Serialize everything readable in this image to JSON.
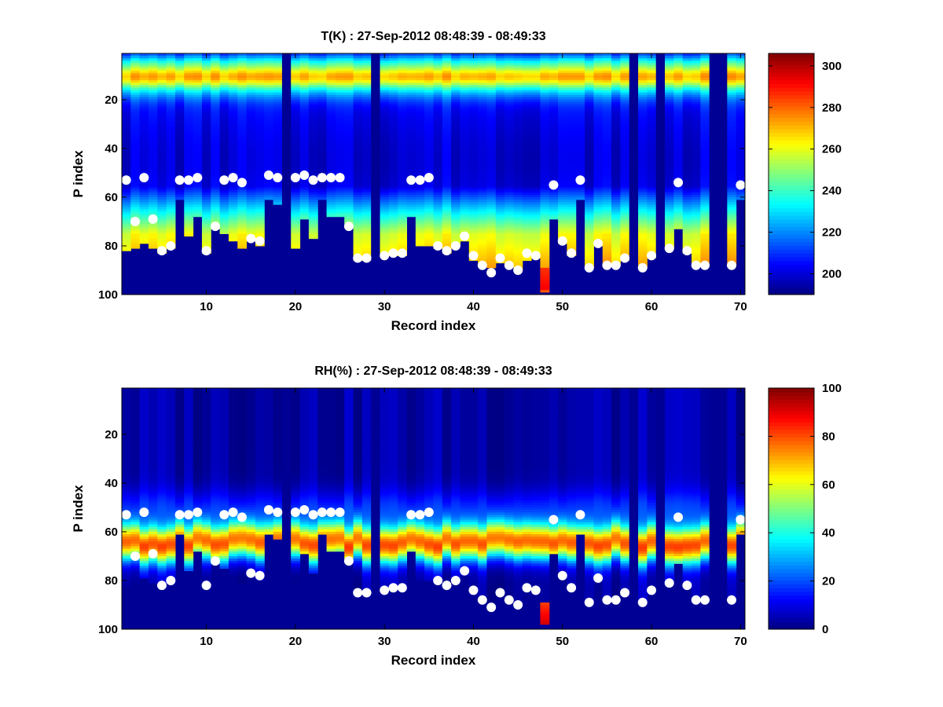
{
  "chart_data": [
    {
      "type": "heatmap",
      "title": "T(K) : 27-Sep-2012 08:48:39 - 08:49:33",
      "xlabel": "Record index",
      "ylabel": "P index",
      "xlim": [
        0.5,
        70.5
      ],
      "ylim": [
        1,
        100
      ],
      "xticks": [
        10,
        20,
        30,
        40,
        50,
        60,
        70
      ],
      "yticks": [
        20,
        40,
        60,
        80,
        100
      ],
      "clim": [
        190,
        306
      ],
      "cbar_ticks": [
        200,
        220,
        240,
        260,
        280,
        300
      ],
      "colormap": "jet",
      "variable": "temperature",
      "missing_records": [
        19,
        29,
        58,
        61,
        67,
        68
      ],
      "surface_level": [
        81,
        80,
        78,
        80,
        82,
        80,
        60,
        75,
        67,
        82,
        72,
        74,
        77,
        80,
        77,
        79,
        60,
        62,
        100,
        80,
        68,
        76,
        60,
        67,
        67,
        70,
        85,
        85,
        100,
        83,
        83,
        83,
        67,
        79,
        79,
        80,
        82,
        79,
        77,
        85,
        86,
        88,
        86,
        87,
        89,
        85,
        84,
        98,
        68,
        78,
        83,
        60,
        88,
        79,
        87,
        87,
        85,
        100,
        88,
        84,
        100,
        80,
        72,
        82,
        87,
        87,
        100,
        100,
        87,
        60
      ],
      "marker_levels": [
        53,
        70,
        52,
        69,
        82,
        80,
        53,
        53,
        52,
        82,
        72,
        53,
        52,
        54,
        77,
        78,
        51,
        52,
        null,
        52,
        51,
        53,
        52,
        52,
        52,
        72,
        85,
        85,
        null,
        84,
        83,
        83,
        53,
        53,
        52,
        80,
        82,
        80,
        76,
        84,
        88,
        91,
        85,
        88,
        90,
        83,
        84,
        null,
        55,
        78,
        83,
        53,
        89,
        79,
        88,
        88,
        85,
        null,
        89,
        84,
        null,
        81,
        54,
        82,
        88,
        88,
        null,
        null,
        88,
        55
      ]
    },
    {
      "type": "heatmap",
      "title": "RH(%) : 27-Sep-2012 08:48:39 - 08:49:33",
      "xlabel": "Record index",
      "ylabel": "P index",
      "xlim": [
        0.5,
        70.5
      ],
      "ylim": [
        1,
        100
      ],
      "xticks": [
        10,
        20,
        30,
        40,
        50,
        60,
        70
      ],
      "yticks": [
        20,
        40,
        60,
        80,
        100
      ],
      "clim": [
        0,
        100
      ],
      "cbar_ticks": [
        0,
        20,
        40,
        60,
        80,
        100
      ],
      "colormap": "jet",
      "variable": "relative_humidity",
      "missing_records": [
        19,
        29,
        58,
        61,
        67,
        68
      ],
      "surface_level": [
        81,
        80,
        78,
        80,
        82,
        80,
        60,
        75,
        67,
        82,
        72,
        74,
        77,
        80,
        77,
        79,
        60,
        62,
        100,
        80,
        68,
        76,
        60,
        67,
        67,
        70,
        85,
        85,
        100,
        83,
        83,
        83,
        67,
        79,
        79,
        80,
        82,
        79,
        77,
        85,
        86,
        88,
        86,
        87,
        89,
        85,
        84,
        98,
        68,
        78,
        83,
        60,
        88,
        79,
        87,
        87,
        85,
        100,
        88,
        84,
        100,
        80,
        72,
        82,
        87,
        87,
        100,
        100,
        87,
        60
      ],
      "marker_levels": [
        53,
        70,
        52,
        69,
        82,
        80,
        53,
        53,
        52,
        82,
        72,
        53,
        52,
        54,
        77,
        78,
        51,
        52,
        null,
        52,
        51,
        53,
        52,
        52,
        52,
        72,
        85,
        85,
        null,
        84,
        83,
        83,
        53,
        53,
        52,
        80,
        82,
        80,
        76,
        84,
        88,
        91,
        85,
        88,
        90,
        83,
        84,
        null,
        55,
        78,
        83,
        53,
        89,
        79,
        88,
        88,
        85,
        null,
        89,
        84,
        null,
        81,
        54,
        82,
        88,
        88,
        null,
        null,
        88,
        55
      ]
    }
  ]
}
